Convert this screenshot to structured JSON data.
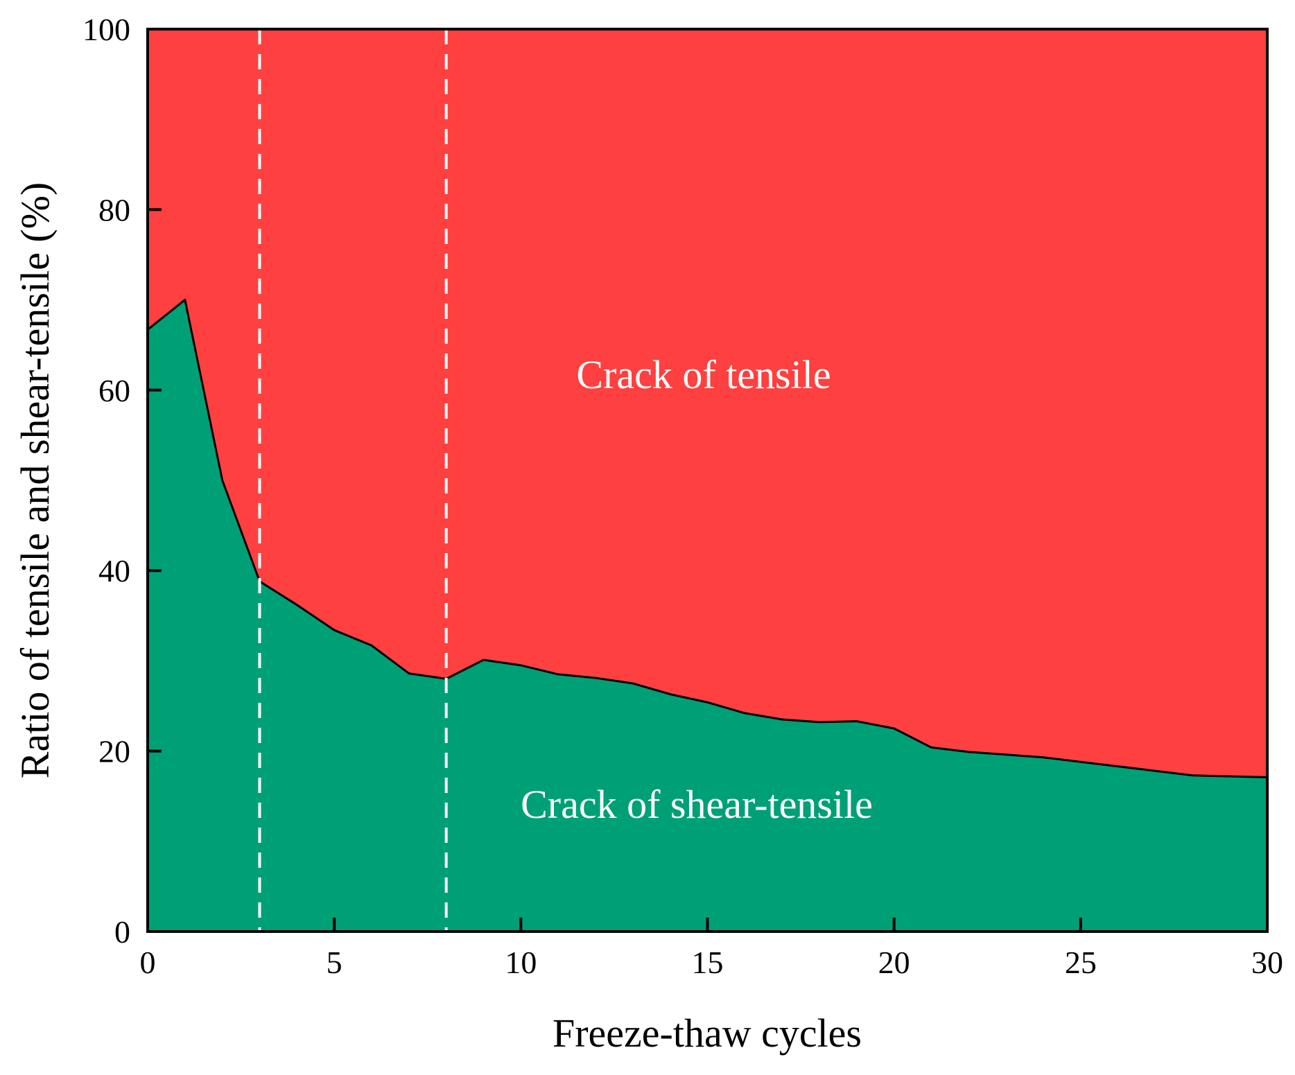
{
  "chart_data": {
    "type": "area",
    "xlabel": "Freeze-thaw cycles",
    "ylabel": "Ratio of tensile and shear-tensile (%)",
    "xlim": [
      0,
      30
    ],
    "ylim": [
      0,
      100
    ],
    "x_ticks": [
      "0",
      "5",
      "10",
      "15",
      "20",
      "25",
      "30"
    ],
    "y_ticks": [
      "0",
      "20",
      "40",
      "60",
      "80",
      "100"
    ],
    "grid": false,
    "legend": "none",
    "colors": {
      "shear_tensile": "#00a077",
      "tensile": "#ff4040",
      "boundary": "#000000",
      "divider": "#ffffff"
    },
    "region_labels": {
      "tensile": "Crack of tensile",
      "shear_tensile": "Crack of shear-tensile"
    },
    "dividers_x": [
      3,
      8
    ],
    "x": [
      0,
      1,
      2,
      3,
      4,
      5,
      6,
      7,
      8,
      9,
      10,
      11,
      12,
      13,
      14,
      15,
      16,
      17,
      18,
      19,
      20,
      21,
      22,
      23,
      24,
      25,
      26,
      27,
      28,
      29,
      30
    ],
    "shear_tensile_values": [
      66.7,
      70.0,
      50.0,
      38.8,
      36.2,
      33.4,
      31.7,
      28.6,
      28.0,
      30.1,
      29.5,
      28.5,
      28.1,
      27.5,
      26.3,
      25.4,
      24.2,
      23.5,
      23.2,
      23.3,
      22.5,
      20.4,
      19.9,
      19.6,
      19.3,
      18.8,
      18.3,
      17.8,
      17.3,
      17.2,
      17.1
    ]
  }
}
